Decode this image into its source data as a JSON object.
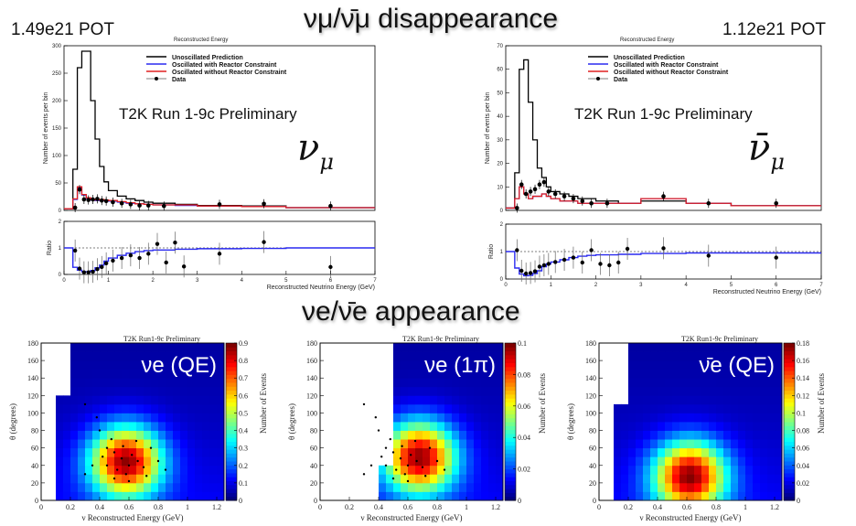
{
  "header": {
    "disappearance_title": "νμ/ν̄μ disappearance",
    "appearance_title": "νe/ν̄e appearance",
    "pot_left": "1.49e21 POT",
    "pot_right": "1.12e21 POT"
  },
  "chart_data": [
    {
      "type": "line",
      "panel": "numu-spectrum",
      "title": "Reconstructed Energy",
      "annotation": "T2K Run 1-9c Preliminary",
      "symbol": "νμ",
      "ylabel": "Number of events per bin",
      "xlim": [
        0,
        7
      ],
      "ylim": [
        0,
        300
      ],
      "yticks": [
        0,
        50,
        100,
        150,
        200,
        250,
        300
      ],
      "legend": [
        "Unoscillated Prediction",
        "Oscillated with Reactor Constraint",
        "Oscillated without Reactor Constraint",
        "Data"
      ],
      "colors": {
        "unosc": "#000000",
        "with": "#2a2af0",
        "without": "#e02020",
        "data": "#000000"
      },
      "bin_edges": [
        0,
        0.2,
        0.3,
        0.4,
        0.5,
        0.6,
        0.7,
        0.8,
        0.9,
        1.0,
        1.2,
        1.4,
        1.6,
        1.8,
        2.0,
        2.5,
        3.0,
        4.0,
        5.0,
        7.0
      ],
      "series": [
        {
          "name": "Unoscillated Prediction",
          "values": [
            3,
            75,
            260,
            290,
            290,
            200,
            130,
            80,
            52,
            36,
            26,
            21,
            18,
            15,
            13,
            11,
            9,
            8,
            5
          ]
        },
        {
          "name": "Oscillated with Reactor Constraint",
          "values": [
            3,
            20,
            42,
            28,
            22,
            19,
            18,
            19,
            18,
            17,
            15,
            13,
            12,
            11,
            10,
            9,
            8,
            7,
            5
          ]
        },
        {
          "name": "Oscillated without Reactor Constraint",
          "values": [
            3,
            21,
            43,
            29,
            23,
            20,
            19,
            20,
            19,
            18,
            16,
            14,
            12,
            11,
            10,
            10,
            8,
            7,
            5
          ]
        }
      ],
      "data_points": {
        "x": [
          0.25,
          0.35,
          0.45,
          0.55,
          0.65,
          0.75,
          0.85,
          0.95,
          1.1,
          1.3,
          1.5,
          1.7,
          1.9,
          2.25,
          3.5,
          4.5,
          6.0
        ],
        "y": [
          5,
          38,
          20,
          19,
          20,
          21,
          18,
          17,
          15,
          13,
          11,
          9,
          9,
          8,
          11,
          12,
          8
        ]
      }
    },
    {
      "type": "line",
      "panel": "numu-ratio",
      "xlabel": "Reconstructed Neutrino Energy (GeV)",
      "ylabel": "Ratio",
      "xlim": [
        0,
        7
      ],
      "ylim": [
        0,
        2
      ],
      "xticks": [
        0,
        1,
        2,
        3,
        4,
        5,
        6,
        7
      ],
      "yticks": [
        0,
        1,
        2
      ],
      "bin_edges": [
        0,
        0.2,
        0.3,
        0.4,
        0.5,
        0.6,
        0.7,
        0.8,
        0.9,
        1.0,
        1.2,
        1.4,
        1.6,
        1.8,
        2.0,
        2.5,
        3.0,
        4.0,
        5.0,
        7.0
      ],
      "series": [
        {
          "name": "Oscillated with Reactor Constraint",
          "values": [
            1.0,
            0.27,
            0.16,
            0.1,
            0.1,
            0.15,
            0.25,
            0.35,
            0.5,
            0.62,
            0.72,
            0.8,
            0.86,
            0.9,
            0.92,
            0.95,
            0.97,
            0.98,
            1.0
          ]
        }
      ],
      "data_points": {
        "x": [
          0.25,
          0.35,
          0.45,
          0.55,
          0.65,
          0.75,
          0.85,
          0.95,
          1.1,
          1.3,
          1.5,
          1.7,
          1.9,
          2.1,
          2.3,
          2.5,
          2.7,
          3.5,
          4.5,
          6.0
        ],
        "y": [
          0.9,
          0.22,
          0.08,
          0.08,
          0.1,
          0.2,
          0.28,
          0.42,
          0.52,
          0.62,
          0.72,
          0.62,
          0.78,
          1.15,
          0.45,
          1.2,
          0.3,
          0.78,
          1.22,
          0.28
        ]
      }
    },
    {
      "type": "line",
      "panel": "numubar-spectrum",
      "title": "Reconstructed Energy",
      "annotation": "T2K Run 1-9c Preliminary",
      "symbol": "ν̄μ",
      "ylabel": "Number of events per bin",
      "xlim": [
        0,
        7
      ],
      "ylim": [
        0,
        70
      ],
      "yticks": [
        0,
        10,
        20,
        30,
        40,
        50,
        60,
        70
      ],
      "legend": [
        "Unoscillated Prediction",
        "Oscillated with Reactor Constraint",
        "Oscillated without Reactor Constraint",
        "Data"
      ],
      "colors": {
        "unosc": "#000000",
        "with": "#2a2af0",
        "without": "#e02020",
        "data": "#000000"
      },
      "bin_edges": [
        0,
        0.2,
        0.3,
        0.4,
        0.5,
        0.6,
        0.7,
        0.8,
        0.9,
        1.0,
        1.2,
        1.4,
        1.6,
        1.8,
        2.0,
        2.5,
        3.0,
        4.0,
        5.0,
        7.0
      ],
      "series": [
        {
          "name": "Unoscillated Prediction",
          "values": [
            1,
            16,
            60,
            64,
            46,
            30,
            18,
            14,
            10,
            8,
            7,
            6,
            5,
            5,
            4,
            3,
            4,
            3,
            2
          ]
        },
        {
          "name": "Oscillated with Reactor Constraint",
          "values": [
            1,
            5,
            10,
            7,
            5,
            6,
            6,
            7,
            6,
            5,
            4,
            4,
            3,
            3,
            3,
            3,
            5,
            3,
            2
          ]
        },
        {
          "name": "Oscillated without Reactor Constraint",
          "values": [
            1,
            5,
            10,
            7,
            5,
            6,
            6,
            7,
            6,
            5,
            4,
            4,
            3,
            3,
            3,
            3,
            5,
            3,
            2
          ]
        }
      ],
      "data_points": {
        "x": [
          0.25,
          0.35,
          0.45,
          0.55,
          0.65,
          0.75,
          0.85,
          0.95,
          1.1,
          1.3,
          1.5,
          1.7,
          1.9,
          2.25,
          3.5,
          4.5,
          6.0
        ],
        "y": [
          1,
          11,
          7,
          8,
          9,
          11,
          12,
          8,
          7,
          6,
          5,
          4,
          3,
          3,
          6,
          3,
          3
        ]
      }
    },
    {
      "type": "line",
      "panel": "numubar-ratio",
      "xlabel": "Reconstructed Neutrino Energy (GeV)",
      "ylabel": "Ratio",
      "xlim": [
        0,
        7
      ],
      "ylim": [
        0,
        2
      ],
      "xticks": [
        0,
        1,
        2,
        3,
        4,
        5,
        6,
        7
      ],
      "yticks": [
        0,
        1,
        2
      ],
      "bin_edges": [
        0,
        0.2,
        0.3,
        0.4,
        0.5,
        0.6,
        0.7,
        0.8,
        0.9,
        1.0,
        1.2,
        1.4,
        1.6,
        1.8,
        2.0,
        2.5,
        3.0,
        4.0,
        5.0,
        7.0
      ],
      "series": [
        {
          "name": "Oscillated with Reactor Constraint",
          "values": [
            1.0,
            0.4,
            0.18,
            0.12,
            0.13,
            0.2,
            0.3,
            0.45,
            0.55,
            0.62,
            0.7,
            0.78,
            0.83,
            0.86,
            0.88,
            0.9,
            0.93,
            0.95,
            0.95
          ]
        }
      ],
      "data_points": {
        "x": [
          0.25,
          0.35,
          0.45,
          0.55,
          0.65,
          0.75,
          0.85,
          0.95,
          1.1,
          1.3,
          1.5,
          1.7,
          1.9,
          2.1,
          2.3,
          2.5,
          2.7,
          3.5,
          4.5,
          6.0
        ],
        "y": [
          1.05,
          0.3,
          0.2,
          0.22,
          0.28,
          0.45,
          0.5,
          0.55,
          0.62,
          0.7,
          0.78,
          0.6,
          1.05,
          0.55,
          0.5,
          0.6,
          1.1,
          1.12,
          0.85,
          0.78
        ]
      }
    },
    {
      "type": "heatmap",
      "panel": "nue-qe",
      "title": "T2K Run1-9c Preliminary",
      "label": "νe (QE)",
      "xlabel": "ν Reconstructed Energy (GeV)",
      "ylabel": "θ (degrees)",
      "zlabel": "Number of Events",
      "xlim": [
        0,
        1.25
      ],
      "ylim": [
        0,
        180
      ],
      "zmax": 0.9,
      "xticks": [
        "0",
        "0.2",
        "0.4",
        "0.6",
        "0.8",
        "1",
        "1.2"
      ],
      "yticks": [
        "0",
        "20",
        "40",
        "60",
        "80",
        "100",
        "120",
        "140",
        "160",
        "180"
      ],
      "zticks": [
        "0",
        "0.1",
        "0.2",
        "0.3",
        "0.4",
        "0.5",
        "0.6",
        "0.7",
        "0.8",
        "0.9"
      ],
      "x_threshold": 0.1,
      "y_cut": 120,
      "x_threshold_high": 0.1,
      "peak": {
        "x": 0.58,
        "y": 45,
        "value": 0.9
      }
    },
    {
      "type": "heatmap",
      "panel": "nue-1pi",
      "title": "T2K Run1-9c Preliminary",
      "label": "νe (1π)",
      "xlabel": "ν Reconstructed Energy (GeV)",
      "ylabel": "θ (degrees)",
      "zlabel": "Number of Events",
      "xlim": [
        0,
        1.25
      ],
      "ylim": [
        0,
        180
      ],
      "zmax": 0.1,
      "xticks": [
        "0",
        "0.2",
        "0.4",
        "0.6",
        "0.8",
        "1",
        "1.2"
      ],
      "yticks": [
        "0",
        "20",
        "40",
        "60",
        "80",
        "100",
        "120",
        "140",
        "160",
        "180"
      ],
      "zticks": [
        "0",
        "0.02",
        "0.04",
        "0.06",
        "0.08",
        "0.1"
      ],
      "x_threshold": 0.4,
      "y_cut": 40,
      "x_threshold_high": 0.45,
      "peak": {
        "x": 0.68,
        "y": 50,
        "value": 0.1
      }
    },
    {
      "type": "heatmap",
      "panel": "nuebar-qe",
      "title": "T2K Run1-9c Preliminary",
      "label": "ν̄e (QE)",
      "xlabel": "ν Reconstructed Energy (GeV)",
      "ylabel": "θ (degrees)",
      "zlabel": "Number of Events",
      "xlim": [
        0,
        1.25
      ],
      "ylim": [
        0,
        180
      ],
      "zmax": 0.18,
      "xticks": [
        "0",
        "0.2",
        "0.4",
        "0.6",
        "0.8",
        "1",
        "1.2"
      ],
      "yticks": [
        "0",
        "20",
        "40",
        "60",
        "80",
        "100",
        "120",
        "140",
        "160",
        "180"
      ],
      "zticks": [
        "0",
        "0.02",
        "0.04",
        "0.06",
        "0.08",
        "0.1",
        "0.12",
        "0.14",
        "0.16",
        "0.18"
      ],
      "x_threshold": 0.1,
      "y_cut": 110,
      "x_threshold_high": 0.1,
      "peak": {
        "x": 0.62,
        "y": 28,
        "value": 0.18
      }
    }
  ]
}
